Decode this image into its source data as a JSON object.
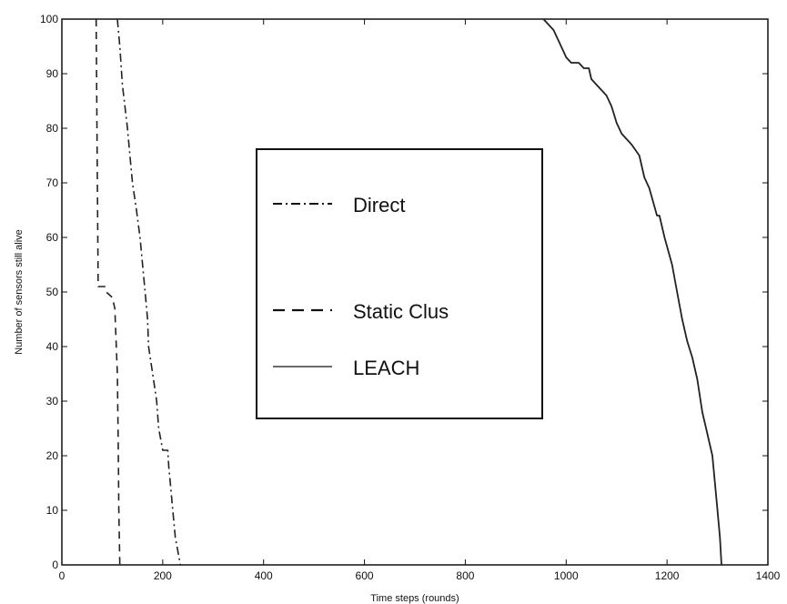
{
  "chart_data": {
    "type": "line",
    "title": "",
    "xlabel": "Time steps (rounds)",
    "ylabel": "Number of sensors still alive",
    "xlim": [
      0,
      1400
    ],
    "ylim": [
      0,
      100
    ],
    "xticks": [
      0,
      200,
      400,
      600,
      800,
      1000,
      1200,
      1400
    ],
    "yticks": [
      0,
      10,
      20,
      30,
      40,
      50,
      60,
      70,
      80,
      90,
      100
    ],
    "grid": false,
    "legend_position": "center",
    "series": [
      {
        "name": "Direct",
        "style": "dash-dot",
        "color": "#222222",
        "points": [
          [
            110,
            100
          ],
          [
            115,
            95
          ],
          [
            120,
            88
          ],
          [
            130,
            80
          ],
          [
            135,
            75
          ],
          [
            140,
            70
          ],
          [
            148,
            65
          ],
          [
            155,
            60
          ],
          [
            160,
            55
          ],
          [
            165,
            50
          ],
          [
            170,
            45
          ],
          [
            172,
            40
          ],
          [
            180,
            35
          ],
          [
            188,
            30
          ],
          [
            192,
            25
          ],
          [
            200,
            21
          ],
          [
            210,
            21
          ],
          [
            212,
            18
          ],
          [
            215,
            15
          ],
          [
            220,
            10
          ],
          [
            225,
            5
          ],
          [
            235,
            0
          ]
        ]
      },
      {
        "name": "Static Clus",
        "style": "dashed",
        "color": "#222222",
        "points": [
          [
            68,
            100
          ],
          [
            70,
            75
          ],
          [
            72,
            51
          ],
          [
            85,
            51
          ],
          [
            88,
            50
          ],
          [
            100,
            49
          ],
          [
            105,
            47
          ],
          [
            110,
            35
          ],
          [
            112,
            20
          ],
          [
            113,
            10
          ],
          [
            115,
            0
          ]
        ]
      },
      {
        "name": "LEACH",
        "style": "solid",
        "color": "#222222",
        "points": [
          [
            955,
            100
          ],
          [
            975,
            98
          ],
          [
            985,
            96
          ],
          [
            1000,
            93
          ],
          [
            1010,
            92
          ],
          [
            1025,
            92
          ],
          [
            1035,
            91
          ],
          [
            1045,
            91
          ],
          [
            1050,
            89
          ],
          [
            1060,
            88
          ],
          [
            1080,
            86
          ],
          [
            1090,
            84
          ],
          [
            1100,
            81
          ],
          [
            1110,
            79
          ],
          [
            1130,
            77
          ],
          [
            1145,
            75
          ],
          [
            1155,
            71
          ],
          [
            1165,
            69
          ],
          [
            1180,
            64
          ],
          [
            1185,
            64
          ],
          [
            1195,
            60
          ],
          [
            1210,
            55
          ],
          [
            1220,
            50
          ],
          [
            1230,
            45
          ],
          [
            1240,
            41
          ],
          [
            1250,
            38
          ],
          [
            1260,
            34
          ],
          [
            1270,
            28
          ],
          [
            1280,
            24
          ],
          [
            1290,
            20
          ],
          [
            1295,
            15
          ],
          [
            1300,
            10
          ],
          [
            1305,
            5
          ],
          [
            1308,
            0
          ]
        ]
      }
    ]
  }
}
